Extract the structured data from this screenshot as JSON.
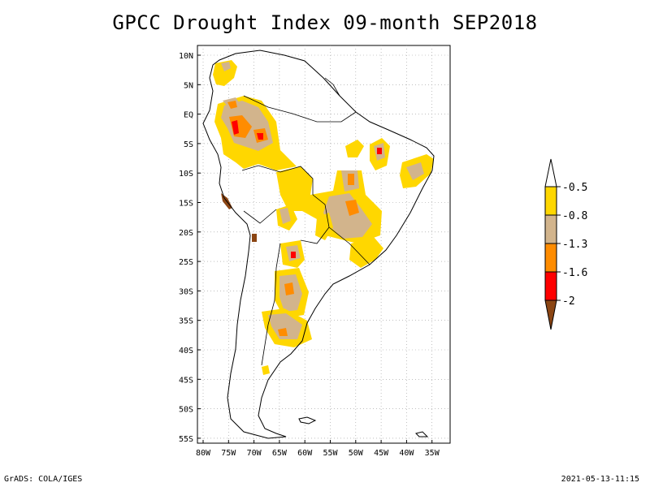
{
  "title": "GPCC Drought Index 09-month SEP2018",
  "footer": {
    "left": "GrADS: COLA/IGES",
    "right": "2021-05-13-11:15"
  },
  "axes": {
    "lat_labels": [
      "10N",
      "5N",
      "EQ",
      "5S",
      "10S",
      "15S",
      "20S",
      "25S",
      "30S",
      "35S",
      "40S",
      "45S",
      "50S",
      "55S"
    ],
    "lon_labels": [
      "80W",
      "75W",
      "70W",
      "65W",
      "60W",
      "55W",
      "50W",
      "45W",
      "40W",
      "35W"
    ]
  },
  "legend": {
    "labels": [
      "-0.5",
      "-0.8",
      "-1.3",
      "-1.6",
      "-2"
    ],
    "colors": {
      "c1": "#ffd700",
      "c2": "#d2b48c",
      "c3": "#ff8c00",
      "c4": "#ff0000",
      "c5": "#8b4513",
      "top": "#ffffff"
    }
  },
  "colors": {
    "coast": "#000000",
    "grid": "#999999"
  }
}
